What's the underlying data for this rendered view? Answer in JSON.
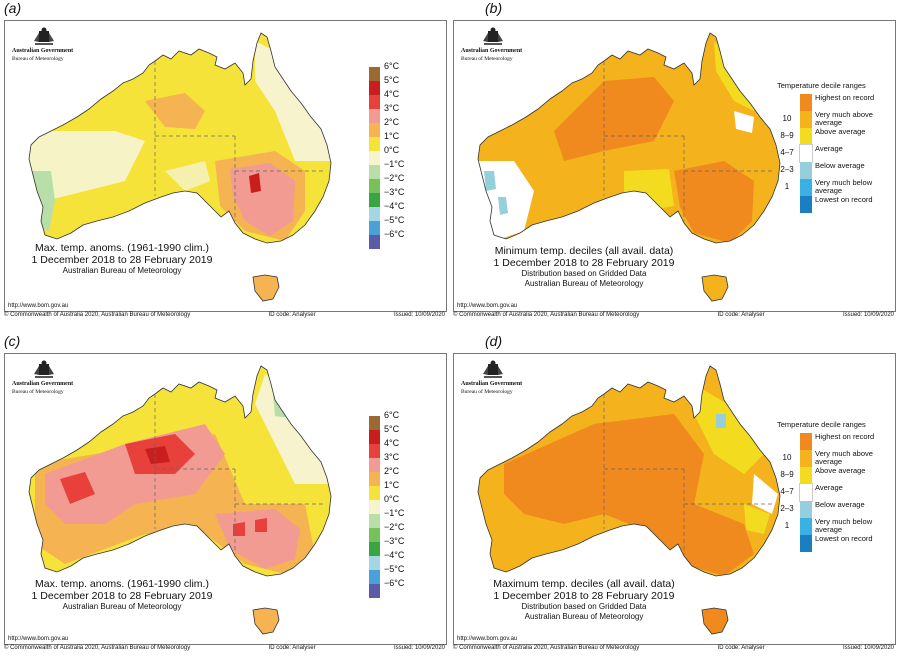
{
  "common": {
    "gov_name": "Australian Government",
    "bom_name": "Bureau of Meteorology",
    "url": "http://www.bom.gov.au",
    "copyright": "© Commonwealth of Australia 2020, Australian Bureau of Meteorology",
    "id_code": "ID code: Analyser",
    "issued": "Issued: 10/09/2020"
  },
  "anomaly_legend": {
    "labels": [
      "6°C",
      "5°C",
      "4°C",
      "3°C",
      "2°C",
      "1°C",
      "0°C",
      "−1°C",
      "−2°C",
      "−3°C",
      "−4°C",
      "−5°C",
      "−6°C"
    ],
    "colors": [
      "#9b6a32",
      "#c81e1e",
      "#e8403a",
      "#f19b93",
      "#f5b352",
      "#f6e33a",
      "#f6f3cd",
      "#b9dfa8",
      "#77c15a",
      "#38a442",
      "#a3d7e3",
      "#4aa1d8",
      "#5b5ba8"
    ]
  },
  "decile_legend": {
    "title": "Temperature decile ranges",
    "rows": [
      {
        "num": "",
        "label": "Highest on record",
        "color": "#f08a1e"
      },
      {
        "num": "10",
        "label": "Very much above average",
        "color": "#f4b21c"
      },
      {
        "num": "8–9",
        "label": "Above average",
        "color": "#f3dc1f"
      },
      {
        "num": "4–7",
        "label": "Average",
        "color": "#ffffff"
      },
      {
        "num": "2–3",
        "label": "Below average",
        "color": "#96cfdc"
      },
      {
        "num": "1",
        "label": "Very much below average",
        "color": "#3bb1e3"
      },
      {
        "num": "",
        "label": "Lowest on record",
        "color": "#1a7fc0"
      }
    ]
  },
  "panels": [
    {
      "letter": "(a)",
      "caption": [
        "Max. temp. anoms. (1961-1990 clim.)",
        "1 December 2018 to 28 February 2019",
        "Australian Bureau of Meteorology"
      ]
    },
    {
      "letter": "(b)",
      "caption": [
        "Minimum temp. deciles (all avail. data)",
        "1 December 2018 to 28 February 2019",
        "Distribution based on Gridded Data",
        "Australian Bureau of Meteorology"
      ]
    },
    {
      "letter": "(c)",
      "caption": [
        "Max. temp. anoms. (1961-1990 clim.)",
        "1 December 2018 to 28 February 2019",
        "Australian Bureau of Meteorology"
      ]
    },
    {
      "letter": "(d)",
      "caption": [
        "Maximum temp. deciles (all avail. data)",
        "1 December 2018 to 28 February 2019",
        "Distribution based on Gridded Data",
        "Australian Bureau of Meteorology"
      ]
    }
  ]
}
